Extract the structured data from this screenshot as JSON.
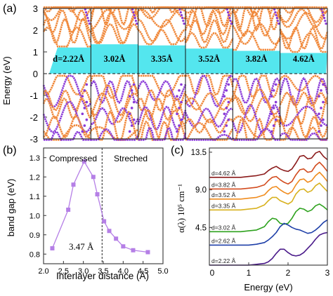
{
  "panel_a": {
    "label": "(a)",
    "ylabel": "Energy (eV)",
    "yticks": [
      "3",
      "2",
      "1",
      "0",
      "-1",
      "-2",
      "-3"
    ],
    "ylim": [
      -3,
      3
    ],
    "gap_band_color": "#54E6EE",
    "band_colors": {
      "orange": "#F0883A",
      "purple": "#8A3BD8"
    },
    "segments": [
      {
        "label": "d=2.22Å",
        "gap": 1.2
      },
      {
        "label": "3.02Å",
        "gap": 1.35
      },
      {
        "label": "3.35Å",
        "gap": 1.3
      },
      {
        "label": "3.52Å",
        "gap": 1.15
      },
      {
        "label": "3.82Å",
        "gap": 1.05
      },
      {
        "label": "4.62Å",
        "gap": 0.95
      }
    ]
  },
  "panel_b": {
    "label": "(b)",
    "ylabel": "band gap (eV)",
    "xlabel": "Interlayer distance (Å)",
    "xticks": [
      "2.0",
      "2.5",
      "3.0",
      "3.5",
      "4.0",
      "4.5",
      "5.0"
    ],
    "yticks": [
      "1.3",
      "1.2",
      "1.1",
      "1.0",
      "0.9",
      "0.8"
    ],
    "xlim": [
      2.0,
      5.0
    ],
    "ylim": [
      0.75,
      1.35
    ],
    "region_left": "Compressed",
    "region_right": "Streched",
    "divider_label": "3.47 Å",
    "divider_x": 3.47,
    "series_color": "#B57FE6"
  },
  "panel_c": {
    "label": "(c)",
    "ylabel": "α(λ) 10⁵ cm⁻¹",
    "xlabel": "Energy (eV)",
    "xticks": [
      "0",
      "1",
      "2",
      "3"
    ],
    "yticks": [
      "13.5",
      "9.0",
      "4.5"
    ],
    "xlim": [
      0,
      3
    ],
    "curves": [
      {
        "label": "d=4.62 Å",
        "color": "#8B1A1A"
      },
      {
        "label": "d=3.82 Å",
        "color": "#D24B1E"
      },
      {
        "label": "d=3.52 Å",
        "color": "#F08C1E"
      },
      {
        "label": "d=3.35 Å",
        "color": "#D8B11E"
      },
      {
        "label": "d=3.02 Å",
        "color": "#2EA21E"
      },
      {
        "label": "d=2.62 Å",
        "color": "#1E3FA8"
      },
      {
        "label": "d=2.22 Å",
        "color": "#4A1A8A"
      }
    ]
  },
  "chart_data": [
    {
      "type": "line",
      "title": "",
      "xlabel": "Interlayer distance (Å)",
      "ylabel": "band gap (eV)",
      "x": [
        2.22,
        2.62,
        2.75,
        3.02,
        3.25,
        3.35,
        3.52,
        3.65,
        3.82,
        4.0,
        4.25,
        4.62
      ],
      "series": [
        {
          "values": [
            0.83,
            1.03,
            1.16,
            1.28,
            1.2,
            1.11,
            0.97,
            0.92,
            0.88,
            0.84,
            0.82,
            0.81
          ]
        }
      ],
      "xlim": [
        2.0,
        5.0
      ],
      "ylim": [
        0.75,
        1.35
      ]
    },
    {
      "type": "line",
      "title": "",
      "xlabel": "Energy (eV)",
      "ylabel": "α(λ) 10⁵ cm⁻¹",
      "xlim": [
        0,
        3
      ],
      "ylim": [
        0,
        14
      ],
      "x": [
        0,
        0.5,
        0.8,
        1.0,
        1.2,
        1.4,
        1.5,
        1.6,
        1.7,
        1.8,
        1.9,
        2.0,
        2.1,
        2.2,
        2.3,
        2.4,
        2.5,
        2.6,
        2.7,
        2.8,
        2.9,
        3.0
      ],
      "series": [
        {
          "name": "d=4.62 Å",
          "values": [
            10.5,
            10.5,
            10.5,
            10.6,
            10.7,
            10.9,
            11.3,
            11.6,
            11.8,
            11.5,
            11.3,
            11.2,
            11.5,
            12.2,
            13.0,
            13.1,
            12.7,
            12.8,
            13.4,
            13.6,
            13.0,
            12.6
          ]
        },
        {
          "name": "d=3.82 Å",
          "values": [
            9.1,
            9.1,
            9.1,
            9.2,
            9.3,
            9.6,
            10.1,
            10.5,
            10.6,
            10.2,
            9.9,
            9.7,
            10.0,
            10.8,
            11.4,
            11.5,
            11.1,
            11.2,
            11.9,
            12.3,
            11.8,
            11.2
          ]
        },
        {
          "name": "d=3.52 Å",
          "values": [
            7.9,
            7.9,
            7.9,
            8.0,
            8.1,
            8.4,
            8.9,
            9.3,
            9.4,
            9.0,
            8.7,
            8.5,
            8.8,
            9.6,
            10.2,
            10.3,
            9.9,
            10.1,
            10.7,
            11.1,
            10.6,
            10.0
          ]
        },
        {
          "name": "d=3.35 Å",
          "values": [
            6.6,
            6.6,
            6.6,
            6.7,
            6.8,
            7.2,
            7.7,
            8.1,
            8.1,
            7.7,
            7.5,
            7.3,
            7.6,
            8.5,
            9.0,
            9.1,
            8.7,
            8.9,
            9.5,
            9.8,
            9.3,
            8.8
          ]
        },
        {
          "name": "d=3.02 Å",
          "values": [
            4.0,
            4.0,
            4.0,
            4.1,
            4.2,
            4.6,
            5.2,
            5.6,
            5.5,
            5.0,
            4.9,
            5.0,
            5.6,
            6.4,
            6.8,
            6.7,
            6.4,
            6.6,
            7.1,
            7.3,
            7.0,
            6.6
          ]
        },
        {
          "name": "d=2.62 Å",
          "values": [
            2.4,
            2.4,
            2.4,
            2.4,
            2.5,
            2.7,
            3.0,
            3.4,
            3.9,
            4.6,
            5.0,
            4.8,
            4.5,
            4.3,
            4.2,
            4.0,
            3.8,
            3.9,
            4.2,
            4.6,
            5.1,
            5.4
          ]
        },
        {
          "name": "d=2.22 Å",
          "values": [
            0.0,
            0.0,
            0.0,
            0.0,
            0.1,
            0.2,
            0.4,
            0.8,
            1.4,
            1.9,
            1.9,
            1.5,
            1.2,
            1.1,
            1.2,
            1.5,
            2.0,
            2.5,
            3.1,
            3.6,
            3.8,
            3.9
          ]
        }
      ]
    }
  ]
}
